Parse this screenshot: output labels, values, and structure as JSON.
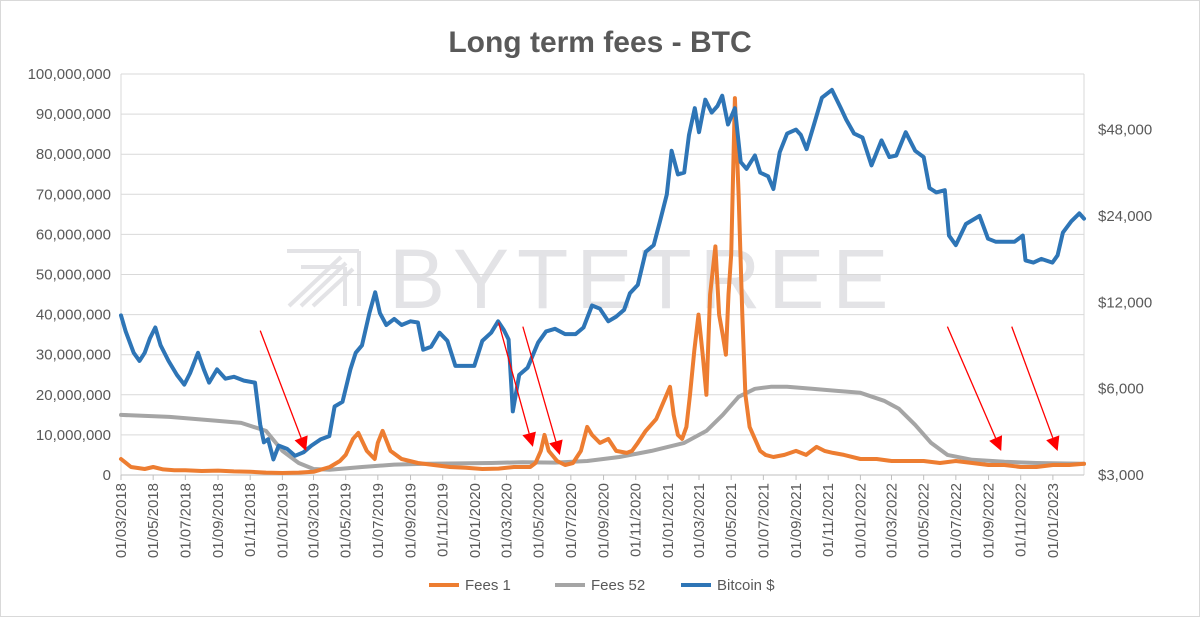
{
  "chart_data": {
    "type": "line",
    "title": "Long term fees - BTC",
    "watermark": "BYTETREE",
    "colors": {
      "fees_1": "#ED7D31",
      "fees_52": "#A5A5A5",
      "bitcoin": "#2E75B6",
      "arrow": "#FF0000",
      "grid": "#D9D9D9",
      "text": "#595959"
    },
    "x_axis": {
      "start": "01/03/2018",
      "end": "01/03/2023",
      "tick_labels": [
        "01/03/2018",
        "01/05/2018",
        "01/07/2018",
        "01/09/2018",
        "01/11/2018",
        "01/01/2019",
        "01/03/2019",
        "01/05/2019",
        "01/07/2019",
        "01/09/2019",
        "01/11/2019",
        "01/01/2020",
        "01/03/2020",
        "01/05/2020",
        "01/07/2020",
        "01/09/2020",
        "01/11/2020",
        "01/01/2021",
        "01/03/2021",
        "01/05/2021",
        "01/07/2021",
        "01/09/2021",
        "01/11/2021",
        "01/01/2022",
        "01/03/2022",
        "01/05/2022",
        "01/07/2022",
        "01/09/2022",
        "01/11/2022",
        "01/01/2023"
      ]
    },
    "y_left": {
      "ylim": [
        0,
        100000000
      ],
      "tick_values": [
        0,
        10000000,
        20000000,
        30000000,
        40000000,
        50000000,
        60000000,
        70000000,
        80000000,
        90000000,
        100000000
      ],
      "tick_labels": [
        "0",
        "10,000,000",
        "20,000,000",
        "30,000,000",
        "40,000,000",
        "50,000,000",
        "60,000,000",
        "70,000,000",
        "80,000,000",
        "90,000,000",
        "100,000,000"
      ],
      "grid": true
    },
    "y_right": {
      "scale": "log",
      "ylim": [
        3000,
        75000
      ],
      "tick_values": [
        3000,
        6000,
        12000,
        24000,
        48000
      ],
      "tick_labels": [
        "$3,000",
        "$6,000",
        "$12,000",
        "$24,000",
        "$48,000"
      ]
    },
    "legend": {
      "position": "bottom",
      "entries": [
        "Fees 1",
        "Fees 52",
        "Bitcoin $"
      ]
    },
    "series": [
      {
        "name": "Fees 1",
        "axis": "left",
        "x": [
          "2018-03-01",
          "2018-03-20",
          "2018-04-15",
          "2018-05-01",
          "2018-05-20",
          "2018-06-10",
          "2018-07-01",
          "2018-08-01",
          "2018-09-01",
          "2018-10-01",
          "2018-11-01",
          "2018-12-01",
          "2019-01-01",
          "2019-02-01",
          "2019-03-01",
          "2019-04-01",
          "2019-04-20",
          "2019-05-01",
          "2019-05-15",
          "2019-05-25",
          "2019-06-10",
          "2019-06-25",
          "2019-07-01",
          "2019-07-10",
          "2019-07-25",
          "2019-08-15",
          "2019-09-15",
          "2019-10-15",
          "2019-11-15",
          "2019-12-15",
          "2020-01-15",
          "2020-02-15",
          "2020-03-15",
          "2020-04-15",
          "2020-04-25",
          "2020-05-05",
          "2020-05-12",
          "2020-05-20",
          "2020-06-05",
          "2020-06-20",
          "2020-07-05",
          "2020-07-20",
          "2020-08-01",
          "2020-08-10",
          "2020-08-25",
          "2020-09-10",
          "2020-09-25",
          "2020-10-15",
          "2020-10-25",
          "2020-11-05",
          "2020-11-20",
          "2020-12-10",
          "2021-01-05",
          "2021-01-12",
          "2021-01-20",
          "2021-01-28",
          "2021-02-05",
          "2021-02-12",
          "2021-02-20",
          "2021-02-28",
          "2021-03-08",
          "2021-03-15",
          "2021-03-22",
          "2021-04-01",
          "2021-04-08",
          "2021-04-15",
          "2021-04-21",
          "2021-04-26",
          "2021-05-01",
          "2021-05-08",
          "2021-05-15",
          "2021-05-22",
          "2021-05-28",
          "2021-06-05",
          "2021-06-15",
          "2021-06-25",
          "2021-07-05",
          "2021-07-20",
          "2021-08-10",
          "2021-09-01",
          "2021-09-20",
          "2021-10-10",
          "2021-10-25",
          "2021-11-10",
          "2021-12-01",
          "2022-01-01",
          "2022-02-01",
          "2022-03-01",
          "2022-04-01",
          "2022-05-01",
          "2022-06-01",
          "2022-07-01",
          "2022-08-01",
          "2022-09-01",
          "2022-10-01",
          "2022-11-01",
          "2022-12-01",
          "2023-01-01",
          "2023-02-01",
          "2023-03-01"
        ],
        "values": [
          4000000,
          2000000,
          1500000,
          2000000,
          1400000,
          1200000,
          1200000,
          1000000,
          1100000,
          900000,
          800000,
          600000,
          500000,
          600000,
          800000,
          2000000,
          3500000,
          5000000,
          9000000,
          10500000,
          6000000,
          4000000,
          8000000,
          11000000,
          6000000,
          4000000,
          3000000,
          2500000,
          2000000,
          1800000,
          1500000,
          1600000,
          2000000,
          2000000,
          3000000,
          6000000,
          10000000,
          6000000,
          3500000,
          2500000,
          3000000,
          6000000,
          12000000,
          10000000,
          8000000,
          9000000,
          6000000,
          5500000,
          6000000,
          8000000,
          11000000,
          14000000,
          22000000,
          15000000,
          10000000,
          9000000,
          12000000,
          20000000,
          31000000,
          40000000,
          30000000,
          20000000,
          45000000,
          57000000,
          40000000,
          35000000,
          30000000,
          45000000,
          55000000,
          94000000,
          70000000,
          40000000,
          20000000,
          12000000,
          9000000,
          6000000,
          5000000,
          4500000,
          5000000,
          6000000,
          5000000,
          7000000,
          6000000,
          5500000,
          5000000,
          4000000,
          4000000,
          3500000,
          3500000,
          3500000,
          3000000,
          3500000,
          3000000,
          2500000,
          2500000,
          2000000,
          2000000,
          2500000,
          2500000,
          2800000
        ]
      },
      {
        "name": "Fees 52",
        "axis": "left",
        "x": [
          "2018-03-01",
          "2018-06-01",
          "2018-09-01",
          "2018-10-15",
          "2018-12-01",
          "2019-01-01",
          "2019-02-01",
          "2019-03-01",
          "2019-04-01",
          "2019-06-01",
          "2019-08-01",
          "2019-10-01",
          "2019-12-01",
          "2020-02-01",
          "2020-04-01",
          "2020-06-01",
          "2020-08-01",
          "2020-10-01",
          "2020-12-01",
          "2021-02-01",
          "2021-03-15",
          "2021-04-15",
          "2021-05-15",
          "2021-06-15",
          "2021-07-15",
          "2021-08-15",
          "2021-10-01",
          "2021-11-15",
          "2022-01-01",
          "2022-02-15",
          "2022-03-15",
          "2022-04-15",
          "2022-05-15",
          "2022-06-15",
          "2022-08-01",
          "2022-10-01",
          "2022-12-01",
          "2023-03-01"
        ],
        "values": [
          15000000,
          14500000,
          13500000,
          13000000,
          11000000,
          6000000,
          3000000,
          1500000,
          1300000,
          2000000,
          2600000,
          2800000,
          2900000,
          3000000,
          3200000,
          3100000,
          3500000,
          4500000,
          6000000,
          8000000,
          11000000,
          15000000,
          19500000,
          21500000,
          22000000,
          22000000,
          21500000,
          21000000,
          20500000,
          18500000,
          16500000,
          12500000,
          8000000,
          5000000,
          3800000,
          3300000,
          3000000,
          2800000
        ]
      },
      {
        "name": "Bitcoin $",
        "axis": "right",
        "x": [
          "2018-03-01",
          "2018-03-10",
          "2018-03-25",
          "2018-04-05",
          "2018-04-15",
          "2018-04-25",
          "2018-05-05",
          "2018-05-15",
          "2018-05-30",
          "2018-06-15",
          "2018-06-29",
          "2018-07-10",
          "2018-07-25",
          "2018-08-05",
          "2018-08-15",
          "2018-08-30",
          "2018-09-15",
          "2018-10-01",
          "2018-10-20",
          "2018-11-10",
          "2018-11-20",
          "2018-11-27",
          "2018-12-05",
          "2018-12-15",
          "2018-12-25",
          "2019-01-10",
          "2019-01-25",
          "2019-02-10",
          "2019-02-25",
          "2019-03-15",
          "2019-03-31",
          "2019-04-10",
          "2019-04-25",
          "2019-05-10",
          "2019-05-20",
          "2019-06-01",
          "2019-06-15",
          "2019-06-26",
          "2019-07-05",
          "2019-07-17",
          "2019-08-01",
          "2019-08-15",
          "2019-09-01",
          "2019-09-15",
          "2019-09-25",
          "2019-10-10",
          "2019-10-26",
          "2019-11-10",
          "2019-11-25",
          "2019-12-10",
          "2019-12-31",
          "2020-01-15",
          "2020-02-01",
          "2020-02-14",
          "2020-02-25",
          "2020-03-05",
          "2020-03-13",
          "2020-03-25",
          "2020-04-10",
          "2020-04-30",
          "2020-05-15",
          "2020-06-01",
          "2020-06-20",
          "2020-07-10",
          "2020-07-25",
          "2020-08-10",
          "2020-08-25",
          "2020-09-10",
          "2020-09-25",
          "2020-10-10",
          "2020-10-21",
          "2020-11-05",
          "2020-11-20",
          "2020-12-05",
          "2020-12-17",
          "2020-12-30",
          "2021-01-08",
          "2021-01-20",
          "2021-02-01",
          "2021-02-10",
          "2021-02-21",
          "2021-03-01",
          "2021-03-13",
          "2021-03-25",
          "2021-04-05",
          "2021-04-14",
          "2021-04-25",
          "2021-05-08",
          "2021-05-19",
          "2021-05-30",
          "2021-06-15",
          "2021-06-25",
          "2021-07-10",
          "2021-07-20",
          "2021-08-01",
          "2021-08-15",
          "2021-09-01",
          "2021-09-10",
          "2021-09-21",
          "2021-10-05",
          "2021-10-20",
          "2021-11-08",
          "2021-11-25",
          "2021-12-05",
          "2021-12-20",
          "2022-01-05",
          "2022-01-22",
          "2022-02-10",
          "2022-02-25",
          "2022-03-10",
          "2022-03-28",
          "2022-04-15",
          "2022-05-01",
          "2022-05-12",
          "2022-05-25",
          "2022-06-10",
          "2022-06-18",
          "2022-07-01",
          "2022-07-20",
          "2022-08-15",
          "2022-08-31",
          "2022-09-15",
          "2022-10-01",
          "2022-10-20",
          "2022-11-05",
          "2022-11-10",
          "2022-11-25",
          "2022-12-10",
          "2022-12-31",
          "2023-01-10",
          "2023-01-20",
          "2023-02-05",
          "2023-02-20",
          "2023-03-01"
        ],
        "values": [
          10800,
          9500,
          8000,
          7500,
          8000,
          9000,
          9800,
          8500,
          7500,
          6700,
          6200,
          6800,
          8000,
          7000,
          6300,
          7000,
          6500,
          6600,
          6400,
          6300,
          4500,
          3900,
          4000,
          3400,
          3800,
          3700,
          3500,
          3600,
          3800,
          4000,
          4100,
          5200,
          5400,
          7000,
          8000,
          8500,
          11000,
          13000,
          11000,
          10000,
          10500,
          10000,
          10300,
          10200,
          8200,
          8400,
          9400,
          8800,
          7200,
          7200,
          7200,
          8800,
          9400,
          10300,
          9600,
          8900,
          5000,
          6700,
          7100,
          8700,
          9500,
          9700,
          9300,
          9300,
          9800,
          11700,
          11400,
          10300,
          10700,
          11300,
          12900,
          13800,
          18000,
          19000,
          23000,
          28500,
          40500,
          33500,
          34000,
          46000,
          57000,
          47000,
          61000,
          55000,
          58000,
          63000,
          50000,
          57000,
          37000,
          35000,
          39000,
          34000,
          33000,
          29800,
          40000,
          46500,
          48000,
          46000,
          41000,
          50000,
          62000,
          66000,
          57000,
          52000,
          46500,
          45000,
          36000,
          44000,
          38500,
          39000,
          47000,
          40500,
          38500,
          30000,
          29000,
          29500,
          20500,
          19000,
          22500,
          24000,
          20000,
          19500,
          19500,
          19500,
          20500,
          16800,
          16500,
          17000,
          16500,
          17500,
          21000,
          23000,
          24500,
          23500
        ]
      }
    ],
    "annotations": {
      "red_arrows": [
        {
          "from": [
            "2018-11-20",
            36000000
          ],
          "to": [
            "2019-02-15",
            6000000
          ]
        },
        {
          "from": [
            "2020-02-15",
            38000000
          ],
          "to": [
            "2020-04-20",
            7000000
          ]
        },
        {
          "from": [
            "2020-04-01",
            37000000
          ],
          "to": [
            "2020-06-10",
            5000000
          ]
        },
        {
          "from": [
            "2022-06-15",
            37000000
          ],
          "to": [
            "2022-09-25",
            6000000
          ]
        },
        {
          "from": [
            "2022-10-15",
            37000000
          ],
          "to": [
            "2023-01-10",
            6000000
          ]
        }
      ]
    }
  }
}
